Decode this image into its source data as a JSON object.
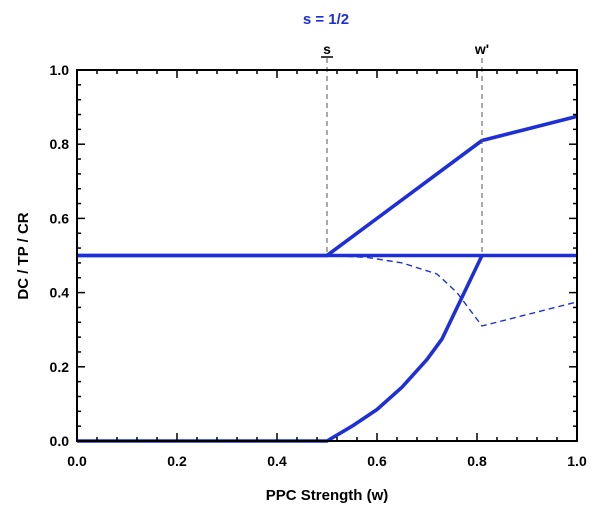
{
  "chart_data": {
    "type": "line",
    "title": "s = 1/2",
    "xlabel": "PPC Strength (w)",
    "ylabel": "DC / TP / CR",
    "xlim": [
      0,
      1
    ],
    "ylim": [
      0,
      1
    ],
    "xticks": [
      "0.0",
      "0.2",
      "0.4",
      "0.6",
      "0.8",
      "1.0"
    ],
    "yticks": [
      "0.0",
      "0.2",
      "0.4",
      "0.6",
      "0.8",
      "1.0"
    ],
    "grid": false,
    "vertical_markers": [
      {
        "label": "s",
        "x": 0.5
      },
      {
        "label": "w'",
        "x": 0.81
      }
    ],
    "series": [
      {
        "style": "solid",
        "points": [
          [
            0,
            0.5
          ],
          [
            0.5,
            0.5
          ],
          [
            0.81,
            0.81
          ],
          [
            1.0,
            0.875
          ]
        ]
      },
      {
        "style": "solid",
        "points": [
          [
            0,
            0.5
          ],
          [
            0.5,
            0.5
          ],
          [
            0.81,
            0.5
          ],
          [
            1.0,
            0.5
          ]
        ]
      },
      {
        "style": "solid",
        "points": [
          [
            0,
            0
          ],
          [
            0.5,
            0
          ],
          [
            0.55,
            0.04
          ],
          [
            0.6,
            0.085
          ],
          [
            0.65,
            0.145
          ],
          [
            0.7,
            0.22
          ],
          [
            0.73,
            0.275
          ],
          [
            0.81,
            0.5
          ]
        ]
      },
      {
        "style": "dashed",
        "points": [
          [
            0.5,
            0.5
          ],
          [
            0.58,
            0.495
          ],
          [
            0.65,
            0.48
          ],
          [
            0.72,
            0.45
          ],
          [
            0.76,
            0.4
          ],
          [
            0.81,
            0.31
          ],
          [
            1.0,
            0.375
          ]
        ]
      }
    ],
    "colors": {
      "series": "#1f2fd8",
      "title": "#1f2fd8",
      "axis": "#000000",
      "marker_line": "#555555"
    }
  }
}
